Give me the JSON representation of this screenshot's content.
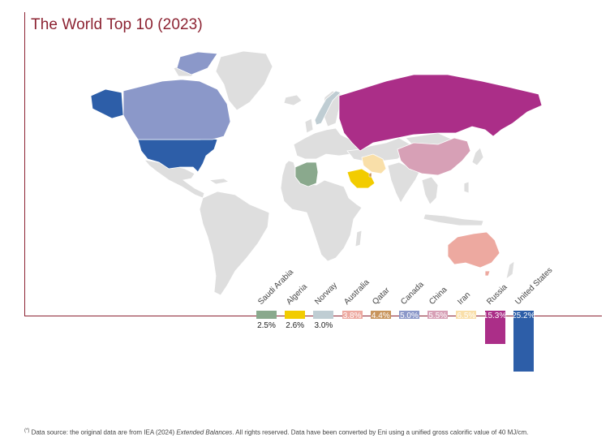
{
  "title": "The World Top 10 (2023)",
  "footnote": {
    "marker": "(*)",
    "pre": "Data source: the original data are from IEA (2024) ",
    "italic": "Extended Balances",
    "post": ". All rights reserved. Data have been converted by Eni using a unified gross calorific value of 40 MJ/cm."
  },
  "colors": {
    "land": "#dedede",
    "frame": "#8c2332"
  },
  "chart_data": {
    "type": "bar",
    "title": "The World Top 10 (2023)",
    "unit": "%",
    "categories": [
      "Saudi Arabia",
      "Algeria",
      "Norway",
      "Australia",
      "Qatar",
      "Canada",
      "China",
      "Iran",
      "Russia",
      "United States"
    ],
    "values": [
      2.5,
      2.6,
      3.0,
      3.8,
      4.4,
      5.0,
      5.5,
      6.5,
      15.3,
      25.2
    ],
    "labels": [
      "2.5%",
      "2.6%",
      "3.0%",
      "3.8%",
      "4.4%",
      "5.0%",
      "5.5%",
      "6.5%",
      "15.3%",
      "25.2%"
    ],
    "colors": [
      "#8aa98d",
      "#f2cc00",
      "#bfcdd3",
      "#eda9a0",
      "#c8955c",
      "#8b98c9",
      "#d7a0b6",
      "#f9dfa9",
      "#ab2e88",
      "#2d5ea8"
    ]
  }
}
